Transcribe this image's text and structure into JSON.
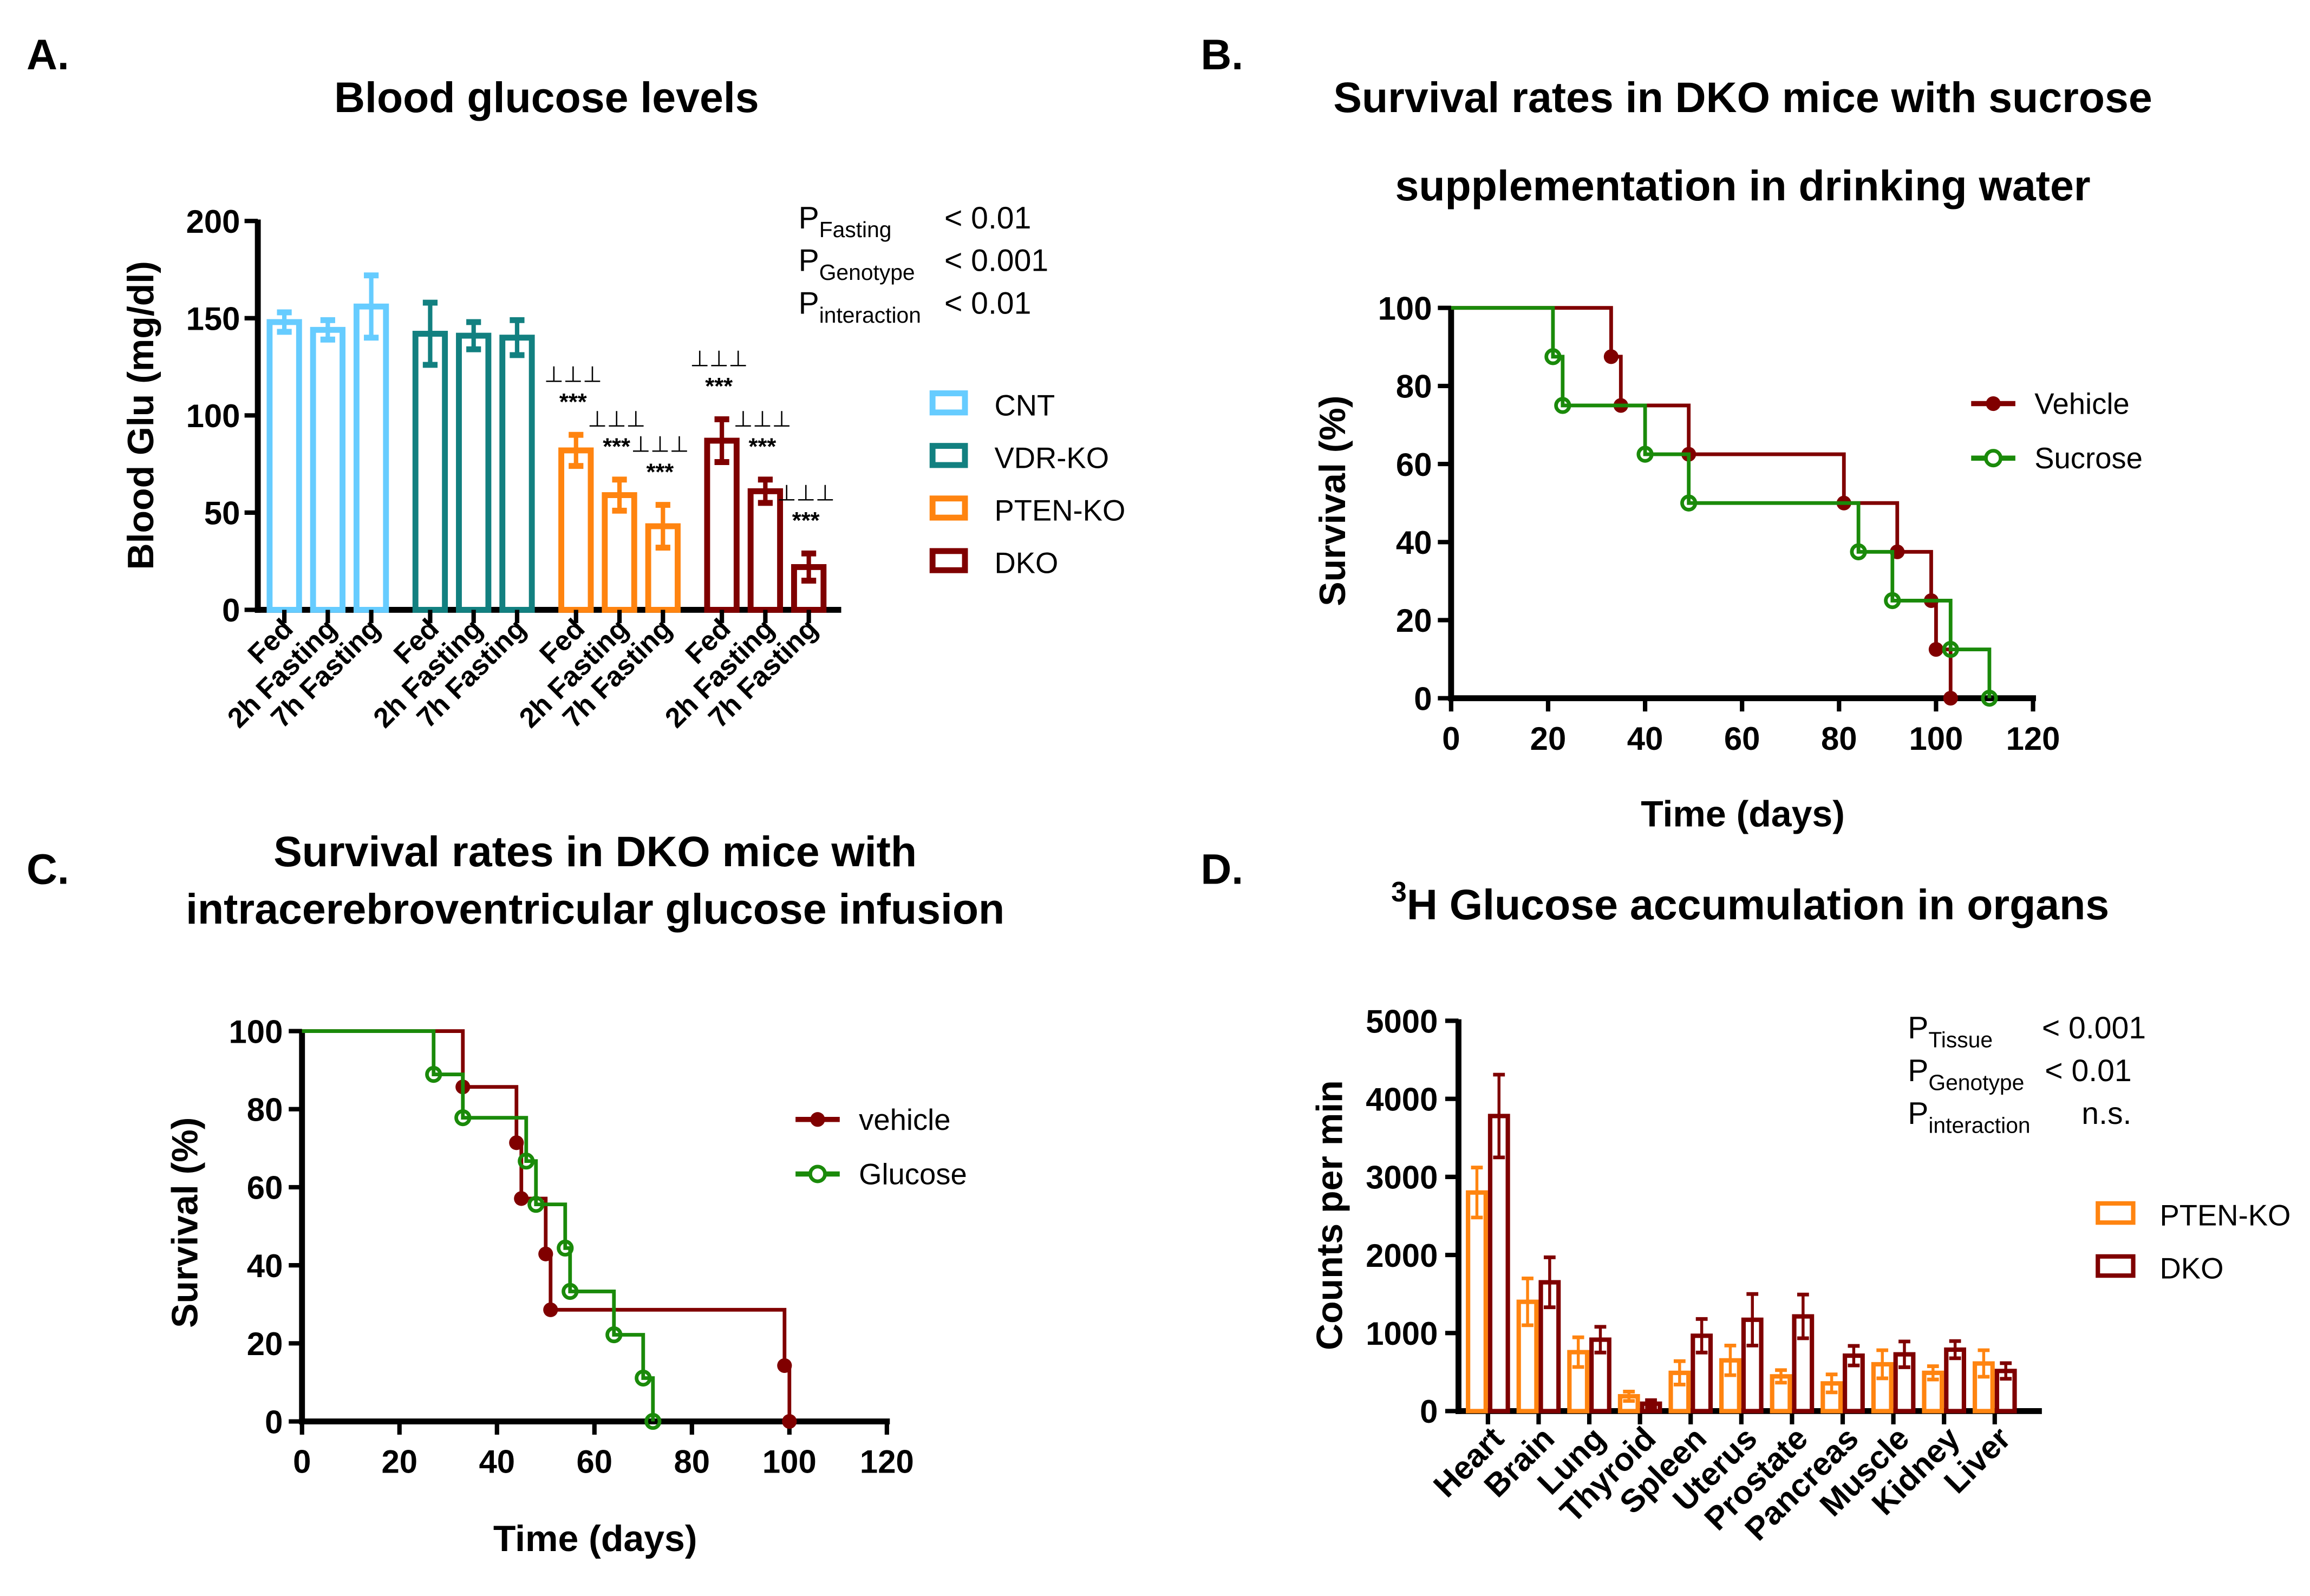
{
  "panels": {
    "a": "A.",
    "b": "B.",
    "c": "C.",
    "d": "D."
  },
  "chart_data": [
    {
      "type": "bar",
      "title": "Blood glucose levels",
      "ylabel": "Blood Glu (mg/dl)",
      "ylim": [
        0,
        200
      ],
      "yticks": [
        0,
        50,
        100,
        150,
        200
      ],
      "categories": [
        "Fed",
        "2h Fasting",
        "7h Fasting"
      ],
      "legend": "right",
      "series": [
        {
          "name": "CNT",
          "color": "#66ccff",
          "values": [
            148,
            144,
            156
          ],
          "errors": [
            5,
            5,
            16
          ],
          "sig_marks": [
            "",
            "",
            ""
          ],
          "sig_stars": [
            "",
            "",
            ""
          ]
        },
        {
          "name": "VDR-KO",
          "color": "#128080",
          "values": [
            142,
            141,
            140
          ],
          "errors": [
            16,
            7,
            9
          ],
          "sig_marks": [
            "",
            "",
            ""
          ],
          "sig_stars": [
            "",
            "",
            ""
          ]
        },
        {
          "name": "PTEN-KO",
          "color": "#ff8410",
          "values": [
            82,
            59,
            43
          ],
          "errors": [
            8,
            8,
            11
          ],
          "sig_marks": [
            "⊥⊥⊥",
            "⊥⊥⊥",
            "⊥⊥⊥"
          ],
          "sig_stars": [
            "***",
            "***",
            "***"
          ]
        },
        {
          "name": "DKO",
          "color": "#7f0000",
          "values": [
            87,
            61,
            22
          ],
          "errors": [
            11,
            6,
            7
          ],
          "sig_marks": [
            "⊥⊥⊥",
            "⊥⊥⊥",
            "⊥⊥⊥"
          ],
          "sig_stars": [
            "***",
            "***",
            "***"
          ]
        }
      ],
      "stats": [
        {
          "label": "P",
          "sub": "Fasting",
          "value": "< 0.01"
        },
        {
          "label": "P",
          "sub": "Genotype",
          "value": "< 0.001"
        },
        {
          "label": "P",
          "sub": "interaction",
          "value": "< 0.01"
        }
      ]
    },
    {
      "type": "line",
      "subtype": "kaplan-meier",
      "title_lines": [
        "Survival rates in DKO mice with sucrose",
        "supplementation in drinking water"
      ],
      "xlabel": "Time (days)",
      "ylabel": "Survival (%)",
      "xlim": [
        0,
        120
      ],
      "xticks": [
        0,
        20,
        40,
        60,
        80,
        100,
        120
      ],
      "ylim": [
        0,
        100
      ],
      "yticks": [
        0,
        20,
        40,
        60,
        80,
        100
      ],
      "legend": "right",
      "series": [
        {
          "name": "Vehicle",
          "color": "#800000",
          "marker": "filled-circle",
          "x": [
            0,
            33,
            35,
            49,
            81,
            92,
            99,
            100,
            103
          ],
          "y": [
            100,
            87.5,
            75,
            62.5,
            50,
            37.5,
            25,
            12.5,
            0
          ]
        },
        {
          "name": "Sucrose",
          "color": "#1a8a0a",
          "marker": "open-circle",
          "x": [
            0,
            21,
            23,
            40,
            49,
            84,
            91,
            103,
            111
          ],
          "y": [
            100,
            87.5,
            75,
            62.5,
            50,
            37.5,
            25,
            12.5,
            0
          ]
        }
      ]
    },
    {
      "type": "line",
      "subtype": "kaplan-meier",
      "title_lines": [
        "Survival rates in DKO mice with",
        "intracerebroventricular glucose infusion"
      ],
      "xlabel": "Time (days)",
      "ylabel": "Survival (%)",
      "xlim": [
        0,
        120
      ],
      "xticks": [
        0,
        20,
        40,
        60,
        80,
        100,
        120
      ],
      "ylim": [
        0,
        100
      ],
      "yticks": [
        0,
        20,
        40,
        60,
        80,
        100
      ],
      "legend": "right",
      "series": [
        {
          "name": "vehicle",
          "color": "#800000",
          "marker": "filled-circle",
          "x": [
            0,
            33,
            44,
            45,
            50,
            51,
            99,
            100
          ],
          "y": [
            100,
            85.7,
            71.4,
            57.1,
            42.9,
            28.6,
            14.3,
            0
          ]
        },
        {
          "name": "Glucose",
          "color": "#1a8a0a",
          "marker": "open-circle",
          "x": [
            0,
            27,
            33,
            46,
            48,
            54,
            55,
            64,
            70,
            72
          ],
          "y": [
            100,
            88.9,
            77.8,
            66.7,
            55.6,
            44.4,
            33.3,
            22.2,
            11.1,
            0
          ]
        }
      ]
    },
    {
      "type": "bar",
      "title_pre": "3",
      "title": "H Glucose accumulation in organs",
      "ylabel": "Counts per min",
      "ylim": [
        0,
        5000
      ],
      "yticks": [
        0,
        1000,
        2000,
        3000,
        4000,
        5000
      ],
      "categories": [
        "Heart",
        "Brain",
        "Lung",
        "Thyroid",
        "Spleen",
        "Uterus",
        "Prostate",
        "Pancreas",
        "Muscle",
        "Kidney",
        "Liver"
      ],
      "legend": "right",
      "series": [
        {
          "name": "PTEN-KO",
          "color": "#ff8410",
          "values": [
            2800,
            1400,
            755,
            190,
            490,
            650,
            445,
            355,
            600,
            490,
            610
          ],
          "errors": [
            320,
            300,
            190,
            60,
            150,
            190,
            80,
            115,
            180,
            85,
            170
          ]
        },
        {
          "name": "DKO",
          "color": "#7f0000",
          "values": [
            3780,
            1650,
            915,
            95,
            965,
            1170,
            1213,
            710,
            727,
            787,
            514
          ],
          "errors": [
            530,
            320,
            165,
            45,
            215,
            330,
            280,
            125,
            165,
            110,
            100
          ]
        }
      ],
      "stats": [
        {
          "label": "P",
          "sub": "Tissue",
          "value": "< 0.001"
        },
        {
          "label": "P",
          "sub": "Genotype",
          "value": "< 0.01"
        },
        {
          "label": "P",
          "sub": "interaction",
          "value": "n.s."
        }
      ]
    }
  ]
}
